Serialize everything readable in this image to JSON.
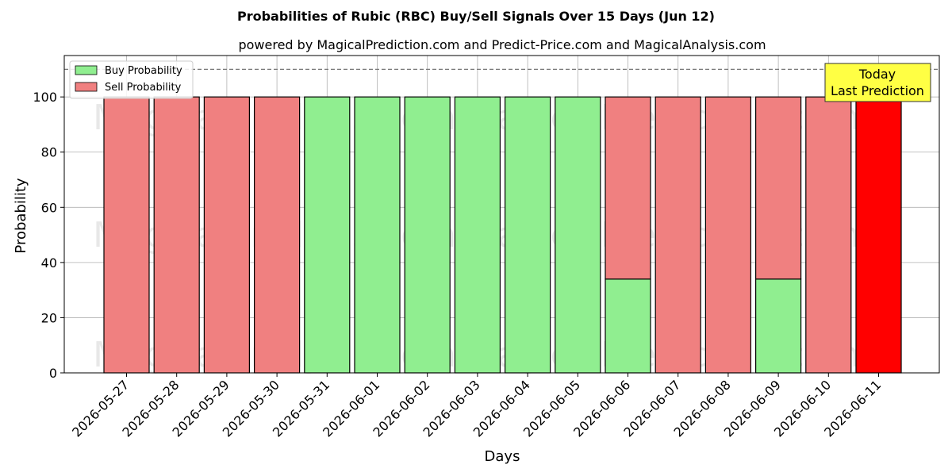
{
  "chart_data": {
    "type": "bar",
    "title": "Probabilities of Rubic (RBC) Buy/Sell Signals Over 15 Days (Jun 12)",
    "subtitle": "powered by MagicalPrediction.com and Predict-Price.com and MagicalAnalysis.com",
    "xlabel": "Days",
    "ylabel": "Probability",
    "ylim": [
      0,
      115
    ],
    "yticks": [
      0,
      20,
      40,
      60,
      80,
      100
    ],
    "categories": [
      "2026-05-27",
      "2026-05-28",
      "2026-05-29",
      "2026-05-30",
      "2026-05-31",
      "2026-06-01",
      "2026-06-02",
      "2026-06-03",
      "2026-06-04",
      "2026-06-05",
      "2026-06-06",
      "2026-06-07",
      "2026-06-08",
      "2026-06-09",
      "2026-06-10",
      "2026-06-11"
    ],
    "series": [
      {
        "name": "Buy Probability",
        "color": "#90ee90",
        "values": [
          0,
          0,
          0,
          0,
          100,
          100,
          100,
          100,
          100,
          100,
          34,
          0,
          0,
          34,
          0,
          0
        ]
      },
      {
        "name": "Sell Probability",
        "color": "#f08080",
        "values": [
          100,
          100,
          100,
          100,
          0,
          0,
          0,
          0,
          0,
          0,
          66,
          100,
          100,
          66,
          100,
          100
        ]
      }
    ],
    "last_bar_color": "#ff0000",
    "reference_line": 110,
    "grid": true,
    "legend_position": "top-left",
    "annotation": {
      "line1": "Today",
      "line2": "Last Prediction",
      "color": "#ffff44"
    },
    "watermarks": [
      "MagicalAnalysis.com",
      "MagicalPrediction.com"
    ]
  }
}
